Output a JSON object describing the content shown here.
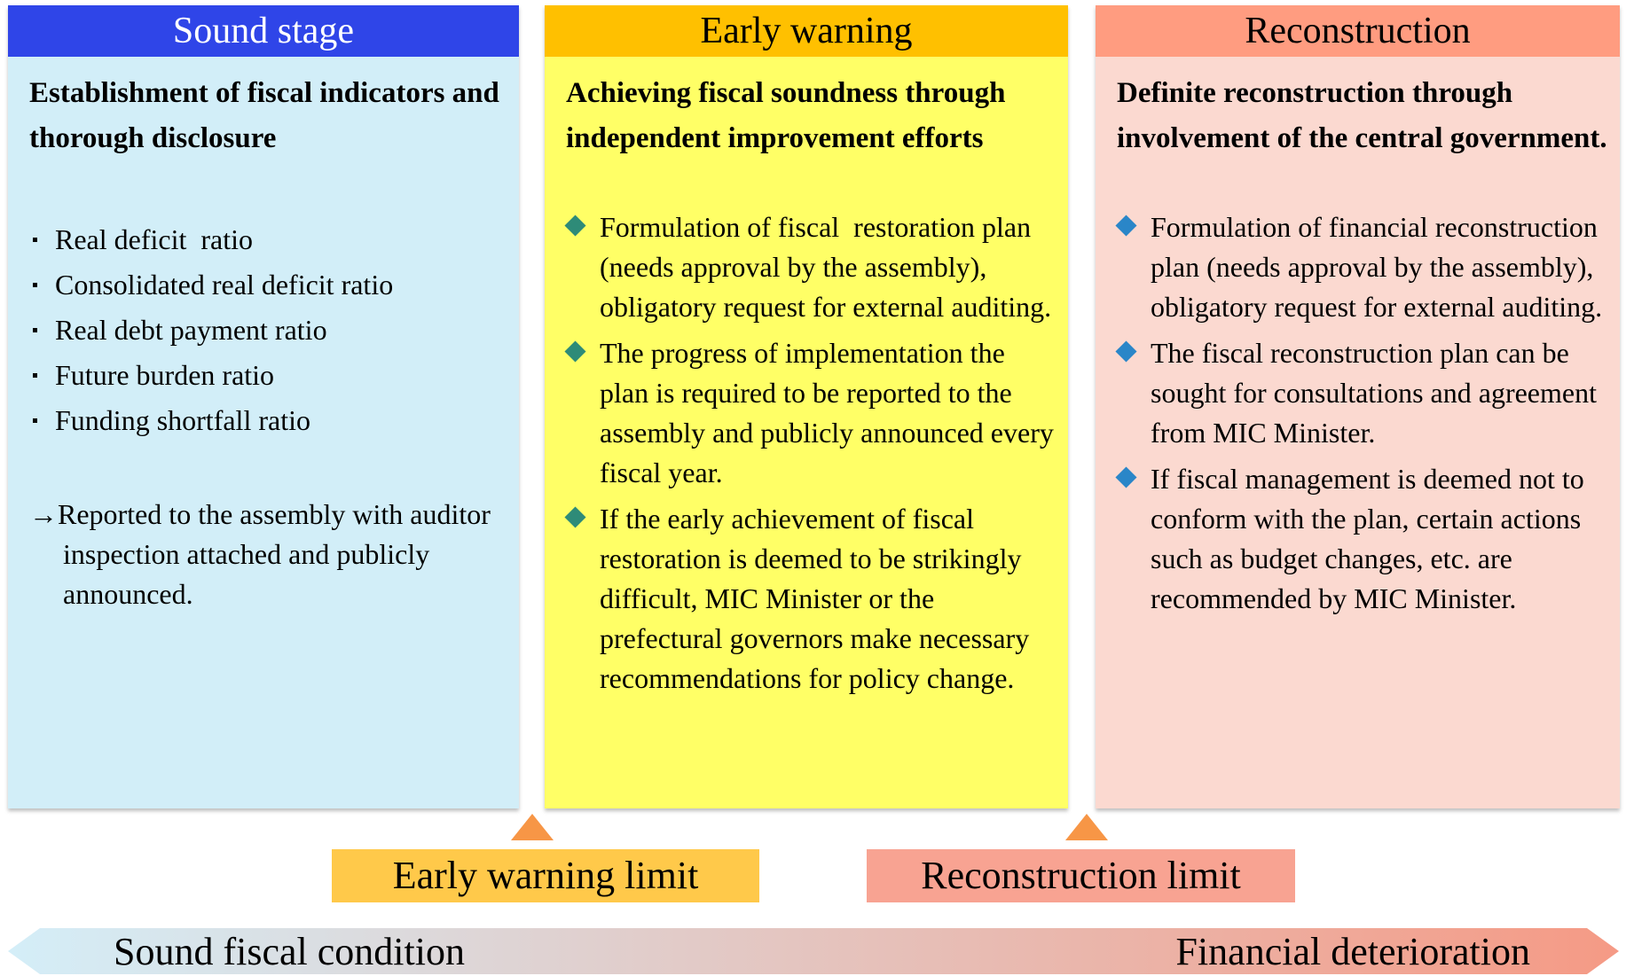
{
  "stages": [
    {
      "title": "Sound stage",
      "heading": "Establishment of fiscal indicators and thorough disclosure",
      "items": [
        "Real deficit  ratio",
        "Consolidated real deficit ratio",
        "Real debt payment ratio",
        "Future burden ratio",
        "Funding shortfall ratio"
      ],
      "note": "→Reported to the assembly with auditor inspection attached and publicly announced."
    },
    {
      "title": "Early warning",
      "heading": "Achieving fiscal soundness through independent improvement efforts",
      "items": [
        "Formulation of fiscal  restoration plan (needs approval by the assembly), obligatory request for external auditing.",
        "The progress of implementation the plan is required to be reported to the assembly and publicly announced every fiscal year.",
        "If the early achievement of fiscal restoration is deemed to be strikingly difficult, MIC Minister or the prefectural governors make necessary recommendations for policy change."
      ]
    },
    {
      "title": "Reconstruction",
      "heading": "Definite reconstruction through involvement of the central government.",
      "items": [
        "Formulation of financial reconstruction plan (needs approval by the assembly), obligatory request for external auditing.",
        "The fiscal reconstruction plan can be sought for consultations and agreement from MIC Minister.",
        "If fiscal management is deemed not to conform with the plan, certain actions such as budget changes, etc. are recommended by MIC Minister."
      ]
    }
  ],
  "limits": [
    "Early warning limit",
    "Reconstruction limit"
  ],
  "scale": {
    "left": "Sound fiscal condition",
    "right": "Financial deterioration"
  }
}
